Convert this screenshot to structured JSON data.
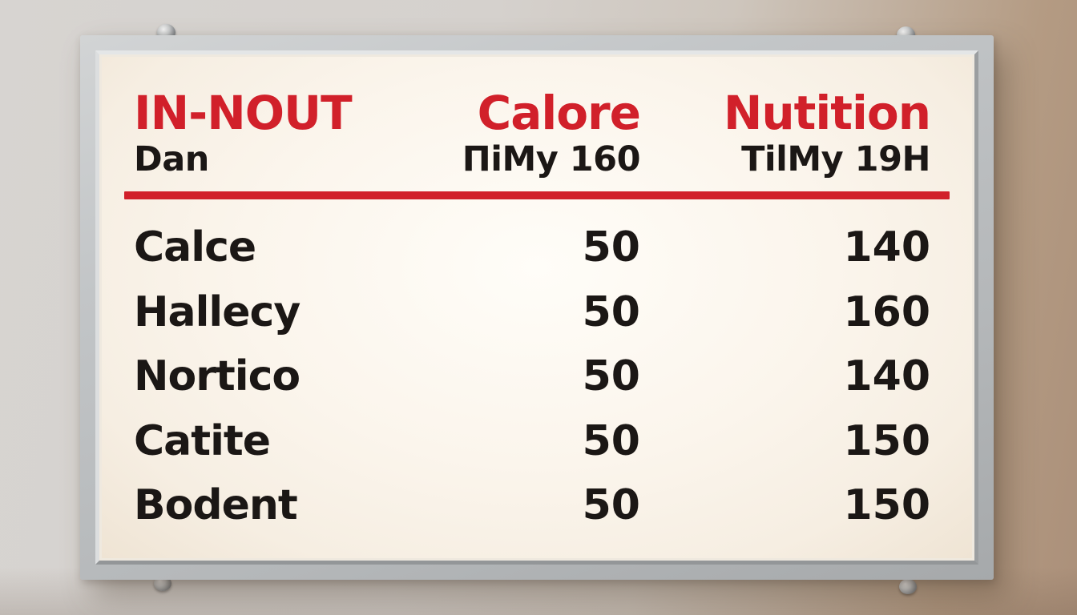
{
  "board": {
    "title": "IN-NOUT",
    "subtitle": "Dan",
    "columns": {
      "calories": {
        "header": "Calore",
        "subheader": "ΠiMy  160"
      },
      "nutrition": {
        "header": "Nutition",
        "subheader": "TilMy   19H"
      }
    },
    "rows": [
      {
        "name": "Calce",
        "calories": "50",
        "nutrition": "140"
      },
      {
        "name": "Hallecy",
        "calories": "50",
        "nutrition": "160"
      },
      {
        "name": "Nortico",
        "calories": "50",
        "nutrition": "140"
      },
      {
        "name": "Catite",
        "calories": "50",
        "nutrition": "150"
      },
      {
        "name": "Bodent",
        "calories": "50",
        "nutrition": "150"
      }
    ],
    "colors": {
      "accent_red": "#d1202a",
      "text_black": "#1b1715",
      "frame_silver": "#bcbfc1",
      "face_white": "#fbf5ec",
      "wall_left": "#d6d3d0",
      "wall_right": "#ab907a"
    },
    "hardware": {
      "screw_count": 4
    }
  }
}
